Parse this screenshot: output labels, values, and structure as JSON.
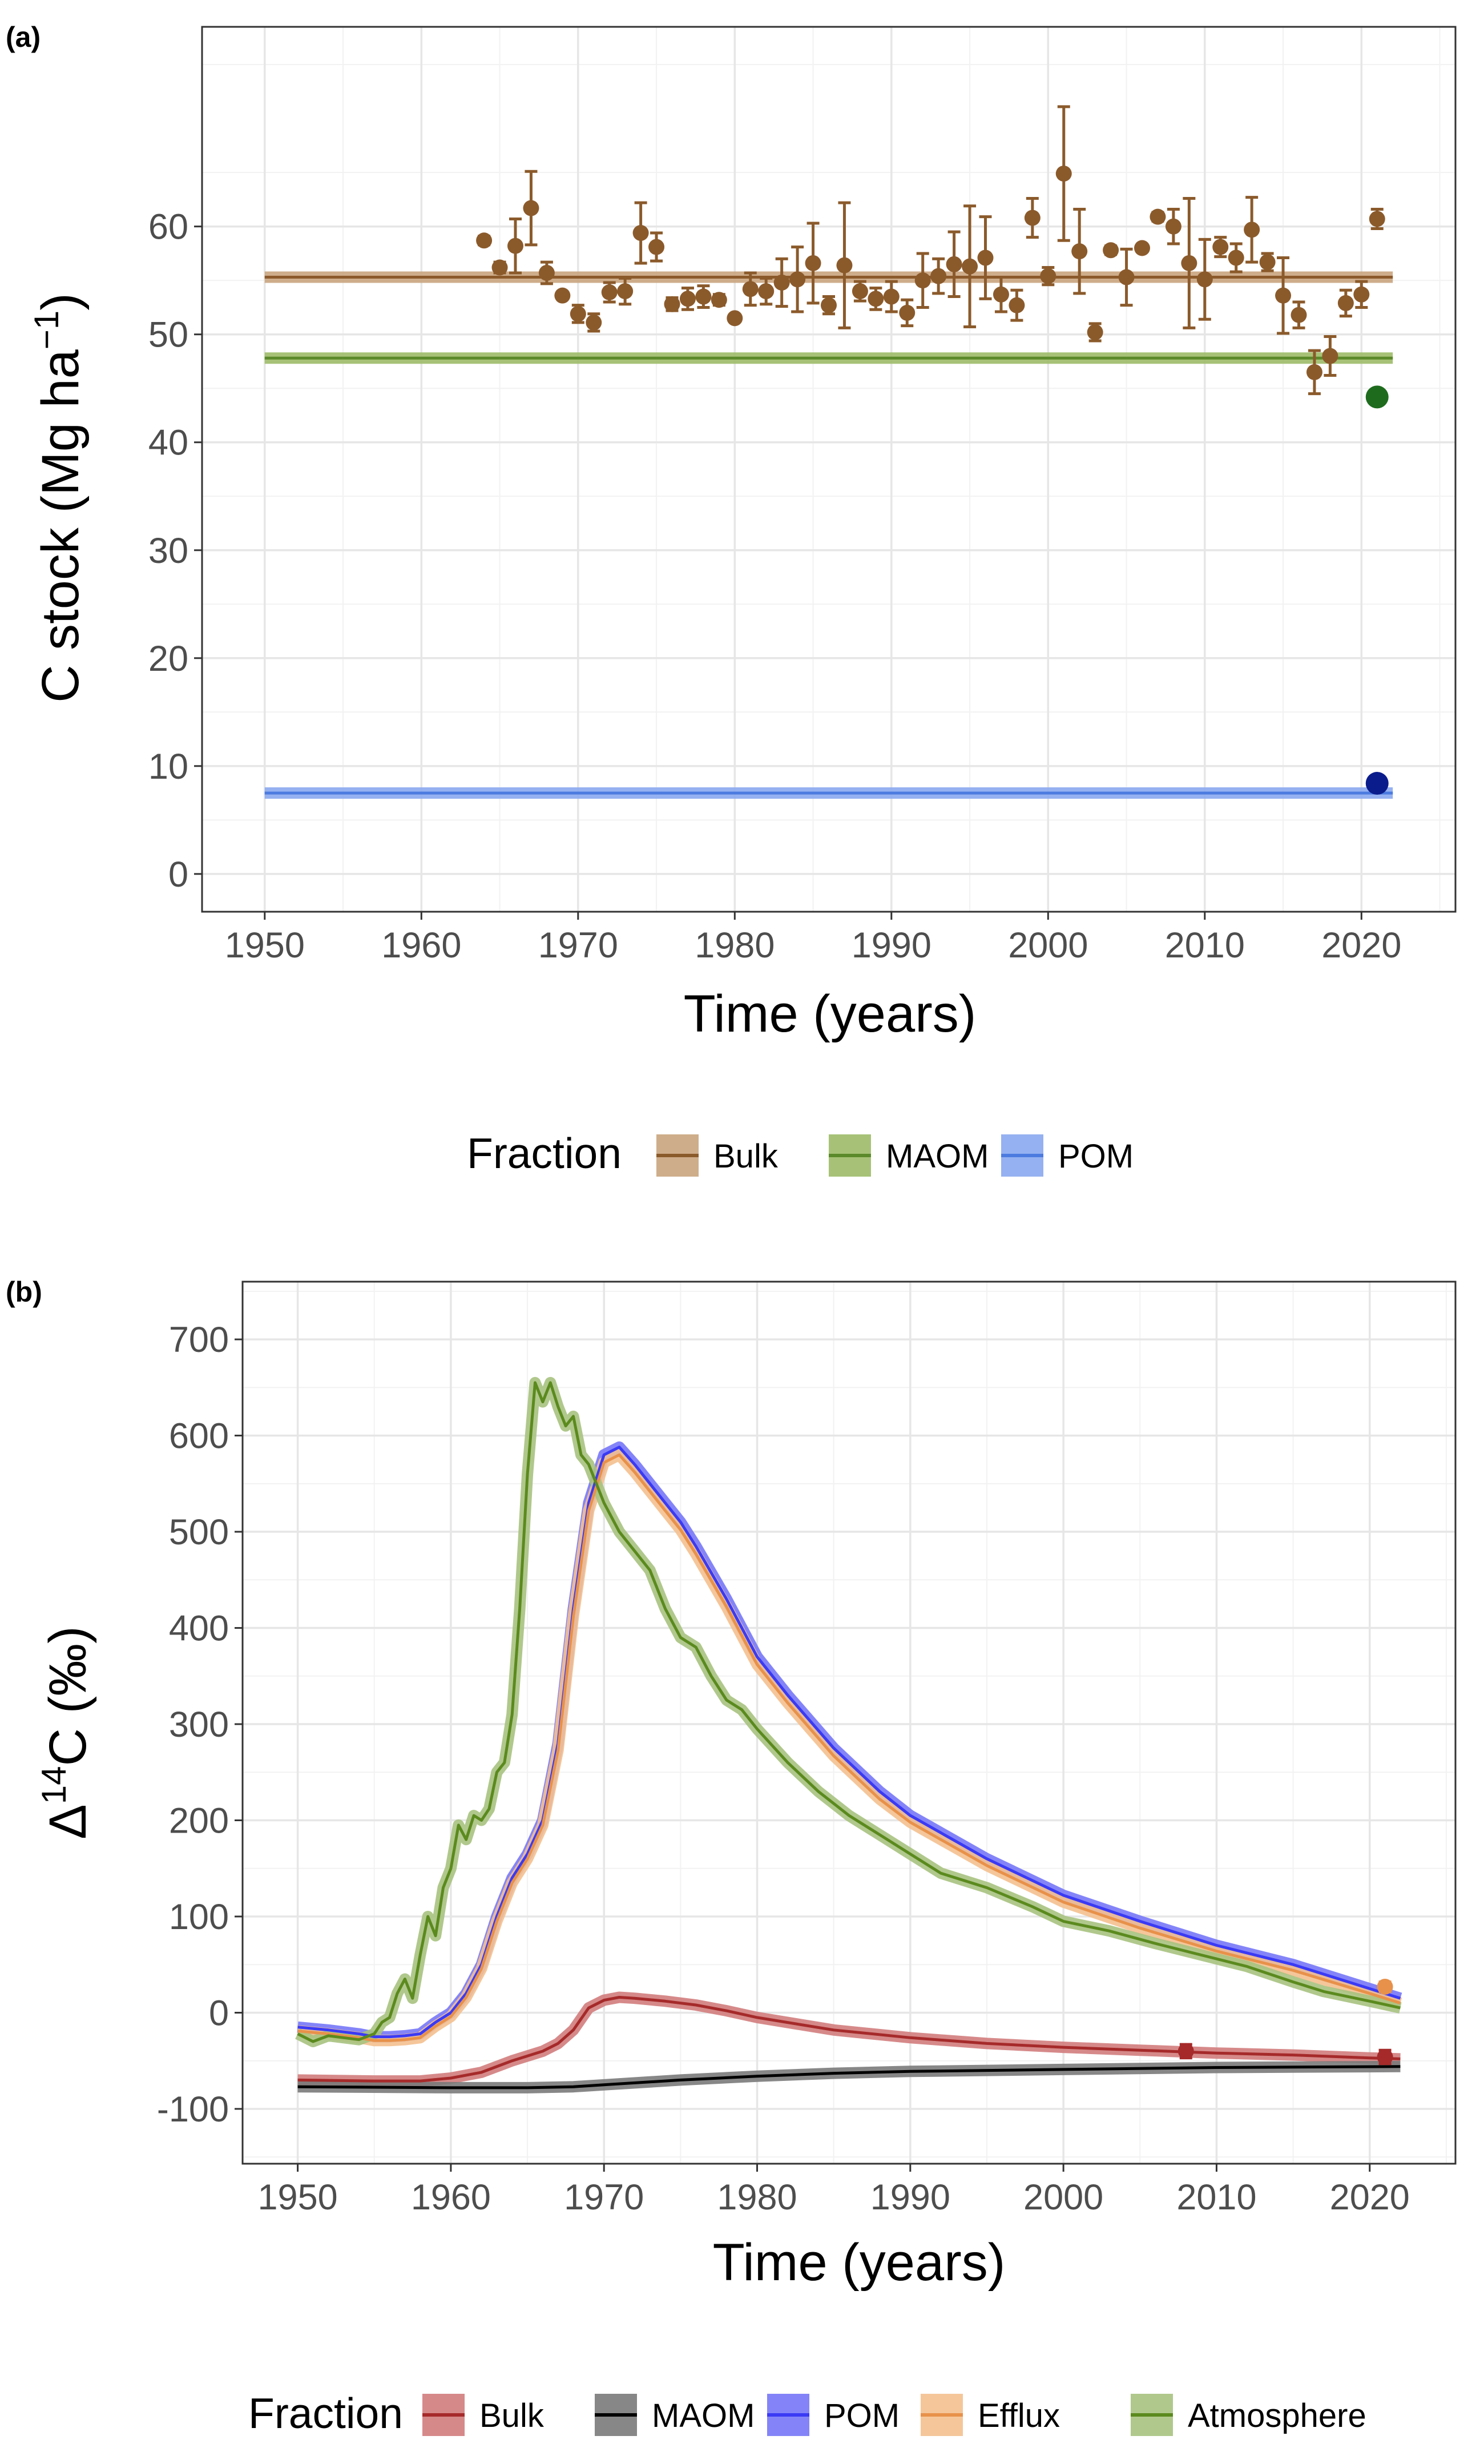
{
  "chart_data": [
    {
      "panel_label": "(a)",
      "type": "line",
      "xlabel": "Time (years)",
      "ylabel": {
        "main": "C stock (Mg ha",
        "sup": "−1",
        "close": ")"
      },
      "xlim": [
        1946,
        2026
      ],
      "ylim": [
        -3.5,
        78.5
      ],
      "xticks": [
        1950,
        1960,
        1970,
        1980,
        1990,
        2000,
        2010,
        2020
      ],
      "yticks": [
        0,
        10,
        20,
        30,
        40,
        50,
        60
      ],
      "grid": true,
      "legend_title": "Fraction",
      "legend_position": "bottom",
      "series": [
        {
          "name": "Bulk",
          "color": "#8B5A2B",
          "band": "#C9A47E",
          "x": [
            1950,
            2022
          ],
          "y": [
            55.3,
            55.3
          ]
        },
        {
          "name": "MAOM",
          "color": "#5B8A2A",
          "band": "#9DBB68",
          "x": [
            1950,
            2022
          ],
          "y": [
            47.8,
            47.8
          ]
        },
        {
          "name": "POM",
          "color": "#4C7BE0",
          "band": "#8AA9F0",
          "x": [
            1950,
            2022
          ],
          "y": [
            7.5,
            7.5
          ]
        }
      ],
      "observations": {
        "color": "#8B5A2B",
        "points": [
          [
            1964,
            58.7,
            0.4
          ],
          [
            1965,
            56.2,
            0.5
          ],
          [
            1966,
            58.2,
            2.5
          ],
          [
            1967,
            61.7,
            3.4
          ],
          [
            1968,
            55.7,
            1.0
          ],
          [
            1969,
            53.6,
            0.3
          ],
          [
            1970,
            51.9,
            0.8
          ],
          [
            1971,
            51.1,
            0.8
          ],
          [
            1972,
            53.9,
            0.9
          ],
          [
            1973,
            54.0,
            1.2
          ],
          [
            1974,
            59.4,
            2.8
          ],
          [
            1975,
            58.1,
            1.3
          ],
          [
            1976,
            52.8,
            0.6
          ],
          [
            1977,
            53.3,
            1.0
          ],
          [
            1978,
            53.5,
            1.0
          ],
          [
            1979,
            53.2,
            0.5
          ],
          [
            1980,
            51.5,
            0.3
          ],
          [
            1981,
            54.2,
            1.5
          ],
          [
            1982,
            54.0,
            1.2
          ],
          [
            1983,
            54.8,
            2.2
          ],
          [
            1984,
            55.1,
            3.0
          ],
          [
            1985,
            56.6,
            3.7
          ],
          [
            1986,
            52.7,
            0.8
          ],
          [
            1987,
            56.4,
            5.8
          ],
          [
            1988,
            54.0,
            0.9
          ],
          [
            1989,
            53.3,
            1.0
          ],
          [
            1990,
            53.5,
            1.4
          ],
          [
            1991,
            52.0,
            1.2
          ],
          [
            1992,
            55.0,
            2.5
          ],
          [
            1993,
            55.4,
            1.6
          ],
          [
            1994,
            56.5,
            3.0
          ],
          [
            1995,
            56.3,
            5.6
          ],
          [
            1996,
            57.1,
            3.8
          ],
          [
            1997,
            53.7,
            1.6
          ],
          [
            1998,
            52.7,
            1.4
          ],
          [
            1999,
            60.8,
            1.8
          ],
          [
            2000,
            55.4,
            0.8
          ],
          [
            2001,
            64.9,
            6.2
          ],
          [
            2002,
            57.7,
            3.9
          ],
          [
            2003,
            50.2,
            0.8
          ],
          [
            2004,
            57.8,
            0.4
          ],
          [
            2005,
            55.3,
            2.6
          ],
          [
            2006,
            58.0,
            0.3
          ],
          [
            2007,
            60.9,
            0.4
          ],
          [
            2008,
            60.0,
            1.6
          ],
          [
            2009,
            56.6,
            6.0
          ],
          [
            2010,
            55.1,
            3.7
          ],
          [
            2011,
            58.1,
            0.9
          ],
          [
            2012,
            57.1,
            1.3
          ],
          [
            2013,
            59.7,
            3.0
          ],
          [
            2014,
            56.7,
            0.8
          ],
          [
            2015,
            53.6,
            3.5
          ],
          [
            2016,
            51.8,
            1.2
          ],
          [
            2017,
            46.5,
            2.0
          ],
          [
            2018,
            48.0,
            1.8
          ],
          [
            2019,
            52.9,
            1.2
          ],
          [
            2020,
            53.7,
            1.2
          ],
          [
            2021,
            60.7,
            0.9
          ]
        ]
      },
      "marker_points": [
        {
          "x": 2021,
          "y": 44.2,
          "color": "#1E6B1E"
        },
        {
          "x": 2021,
          "y": 8.4,
          "color": "#0A1C8C"
        }
      ]
    },
    {
      "panel_label": "(b)",
      "type": "line",
      "xlabel": "Time (years)",
      "ylabel": {
        "prefix": "Δ",
        "sup": "14",
        "main": "C (‰)"
      },
      "xlim": [
        1946.4,
        2025.6
      ],
      "ylim": [
        -157,
        760
      ],
      "xticks": [
        1950,
        1960,
        1970,
        1980,
        1990,
        2000,
        2010,
        2020
      ],
      "yticks": [
        -100,
        0,
        100,
        200,
        300,
        400,
        500,
        600,
        700
      ],
      "grid": true,
      "legend_title": "Fraction",
      "legend_position": "bottom",
      "series": [
        {
          "name": "Bulk",
          "color": "#A62A2A",
          "band": "#D27C7C",
          "x": [
            1950,
            1955,
            1958,
            1960,
            1962,
            1964,
            1966,
            1967,
            1968,
            1969,
            1970,
            1971,
            1972,
            1974,
            1976,
            1978,
            1980,
            1985,
            1990,
            1995,
            2000,
            2005,
            2010,
            2015,
            2020,
            2022
          ],
          "y": [
            -70,
            -71,
            -71,
            -68,
            -62,
            -50,
            -40,
            -32,
            -18,
            5,
            13,
            16,
            15,
            12,
            8,
            2,
            -5,
            -18,
            -26,
            -32,
            -36,
            -39,
            -42,
            -44,
            -47,
            -48
          ]
        },
        {
          "name": "MAOM",
          "color": "#000000",
          "band": "#7A7A7A",
          "x": [
            1950,
            1960,
            1965,
            1968,
            1970,
            1975,
            1980,
            1985,
            1990,
            2000,
            2010,
            2022
          ],
          "y": [
            -77,
            -78,
            -78,
            -77,
            -75,
            -70,
            -66,
            -63,
            -61,
            -59,
            -57,
            -56
          ]
        },
        {
          "name": "POM",
          "color": "#3A3AF5",
          "band": "#7777F7",
          "x": [
            1950,
            1952,
            1954,
            1955,
            1956,
            1957,
            1958,
            1959,
            1960,
            1961,
            1962,
            1963,
            1964,
            1965,
            1966,
            1967,
            1968,
            1969,
            1970,
            1971,
            1972,
            1973,
            1974,
            1975,
            1976,
            1978,
            1980,
            1982,
            1985,
            1988,
            1990,
            1995,
            2000,
            2005,
            2010,
            2015,
            2020,
            2022
          ],
          "y": [
            -15,
            -18,
            -22,
            -25,
            -25,
            -24,
            -22,
            -10,
            0,
            20,
            50,
            100,
            140,
            165,
            200,
            280,
            420,
            530,
            580,
            588,
            570,
            550,
            530,
            510,
            485,
            430,
            370,
            330,
            275,
            230,
            205,
            160,
            122,
            95,
            70,
            50,
            25,
            15
          ]
        },
        {
          "name": "Efflux",
          "color": "#E8914A",
          "band": "#F4C08F",
          "x": [
            1950,
            1952,
            1954,
            1955,
            1956,
            1957,
            1958,
            1959,
            1960,
            1961,
            1962,
            1963,
            1964,
            1965,
            1966,
            1967,
            1968,
            1969,
            1970,
            1971,
            1972,
            1973,
            1974,
            1975,
            1976,
            1978,
            1980,
            1982,
            1985,
            1988,
            1990,
            1995,
            2000,
            2005,
            2010,
            2015,
            2020,
            2022
          ],
          "y": [
            -19,
            -22,
            -26,
            -29,
            -29,
            -28,
            -26,
            -14,
            -4,
            16,
            46,
            95,
            135,
            160,
            195,
            273,
            412,
            522,
            572,
            580,
            562,
            542,
            522,
            502,
            477,
            422,
            362,
            322,
            267,
            222,
            198,
            153,
            115,
            88,
            64,
            44,
            20,
            10
          ]
        },
        {
          "name": "Atmosphere",
          "color": "#5B8A1E",
          "band": "#A7C27F",
          "x": [
            1950,
            1951,
            1952,
            1953,
            1954,
            1955,
            1955.5,
            1956,
            1956.5,
            1957,
            1957.5,
            1958,
            1958.5,
            1959,
            1959.5,
            1960,
            1960.5,
            1961,
            1961.5,
            1962,
            1962.5,
            1963,
            1963.5,
            1964,
            1964.5,
            1965,
            1965.5,
            1966,
            1966.5,
            1967,
            1967.5,
            1968,
            1968.5,
            1969,
            1970,
            1971,
            1972,
            1973,
            1974,
            1975,
            1976,
            1977,
            1978,
            1979,
            1980,
            1982,
            1984,
            1986,
            1988,
            1990,
            1992,
            1995,
            1998,
            2000,
            2003,
            2006,
            2009,
            2012,
            2015,
            2017,
            2020,
            2022
          ],
          "y": [
            -22,
            -30,
            -24,
            -26,
            -28,
            -22,
            -10,
            -5,
            20,
            35,
            15,
            60,
            100,
            80,
            130,
            150,
            195,
            180,
            205,
            200,
            212,
            250,
            260,
            310,
            420,
            560,
            655,
            635,
            655,
            630,
            610,
            620,
            580,
            570,
            530,
            500,
            480,
            460,
            420,
            390,
            380,
            350,
            325,
            315,
            295,
            260,
            230,
            205,
            185,
            165,
            145,
            130,
            110,
            95,
            85,
            72,
            60,
            48,
            32,
            22,
            12,
            5
          ]
        }
      ],
      "observations": {
        "points": [
          [
            2008,
            -40,
            7,
            "#A62A2A"
          ],
          [
            2021,
            -46,
            7,
            "#A62A2A"
          ],
          [
            2021,
            27,
            5,
            "#E8914A"
          ]
        ]
      }
    }
  ]
}
